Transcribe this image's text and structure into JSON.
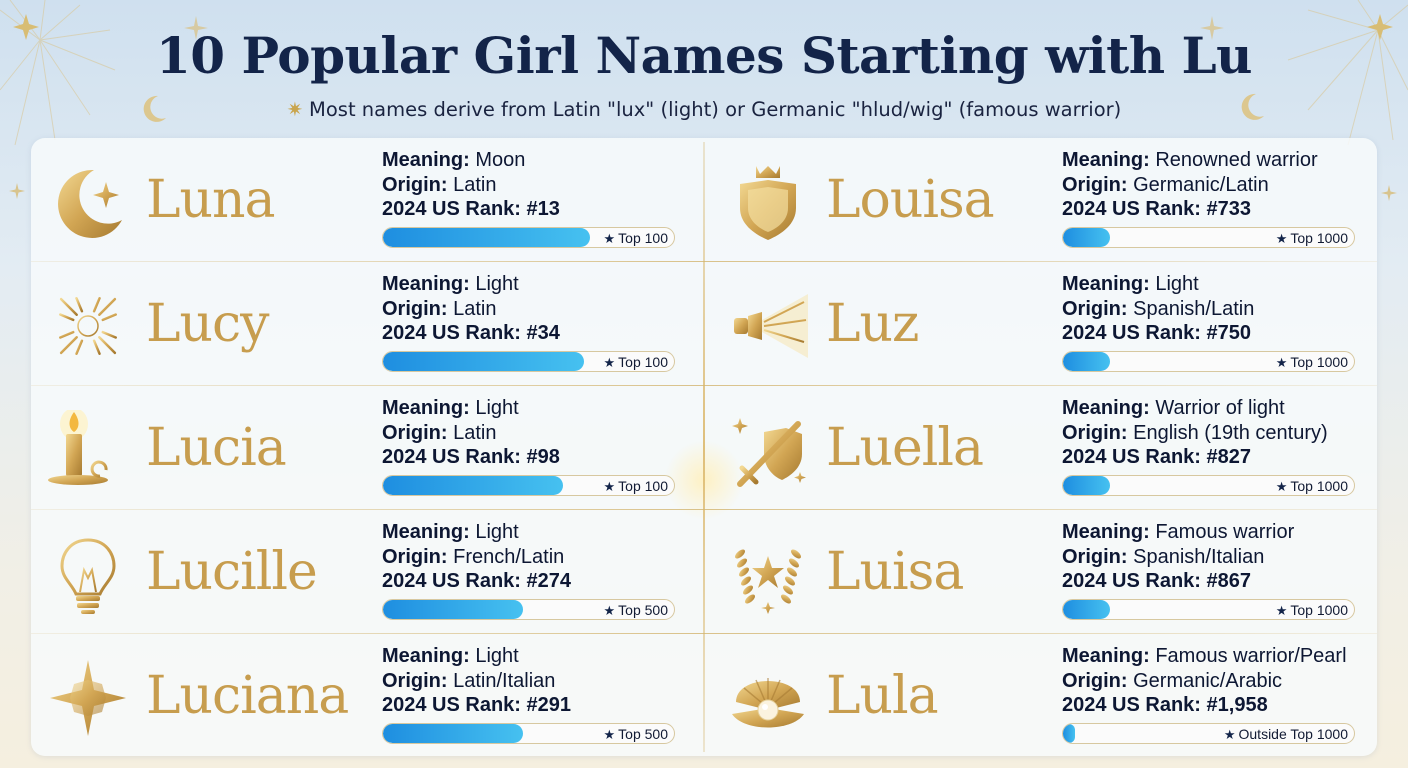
{
  "header": {
    "title": "10 Popular Girl Names Starting with Lu",
    "subtitle": "Most names derive from Latin \"lux\" (light) or Germanic \"hlud/wig\" (famous warrior)"
  },
  "labels": {
    "meaning": "Meaning:",
    "origin": "Origin:",
    "rank": "2024 US Rank:"
  },
  "colors": {
    "gold": "#c79d4e",
    "navy": "#132449",
    "bar_start": "#1e8ee0",
    "bar_end": "#46c1f0"
  },
  "names": [
    {
      "name": "Luna",
      "icon": "crescent-moon-icon",
      "meaning": "Moon",
      "origin": "Latin",
      "rank": "#13",
      "tier": "Top 100",
      "bar_fill": 0.71
    },
    {
      "name": "Lucy",
      "icon": "sunburst-icon",
      "meaning": "Light",
      "origin": "Latin",
      "rank": "#34",
      "tier": "Top 100",
      "bar_fill": 0.69
    },
    {
      "name": "Lucia",
      "icon": "candle-icon",
      "meaning": "Light",
      "origin": "Latin",
      "rank": "#98",
      "tier": "Top 100",
      "bar_fill": 0.62
    },
    {
      "name": "Lucille",
      "icon": "light-bulb-icon",
      "meaning": "Light",
      "origin": "French/Latin",
      "rank": "#274",
      "tier": "Top 500",
      "bar_fill": 0.48
    },
    {
      "name": "Luciana",
      "icon": "star-icon",
      "meaning": "Light",
      "origin": "Latin/Italian",
      "rank": "#291",
      "tier": "Top 500",
      "bar_fill": 0.48
    },
    {
      "name": "Louisa",
      "icon": "crowned-shield-icon",
      "meaning": "Renowned warrior",
      "origin": "Germanic/Latin",
      "rank": "#733",
      "tier": "Top 1000",
      "bar_fill": 0.16
    },
    {
      "name": "Luz",
      "icon": "flashlight-icon",
      "meaning": "Light",
      "origin": "Spanish/Latin",
      "rank": "#750",
      "tier": "Top 1000",
      "bar_fill": 0.16
    },
    {
      "name": "Luella",
      "icon": "sword-shield-icon",
      "meaning": "Warrior of light",
      "origin": "English (19th century)",
      "rank": "#827",
      "tier": "Top 1000",
      "bar_fill": 0.16
    },
    {
      "name": "Luisa",
      "icon": "laurel-star-icon",
      "meaning": "Famous warrior",
      "origin": "Spanish/Italian",
      "rank": "#867",
      "tier": "Top 1000",
      "bar_fill": 0.16
    },
    {
      "name": "Lula",
      "icon": "pearl-shell-icon",
      "meaning": "Famous warrior/Pearl",
      "origin": "Germanic/Arabic",
      "rank": "#1,958",
      "tier": "Outside Top 1000",
      "bar_fill": 0.04
    }
  ]
}
